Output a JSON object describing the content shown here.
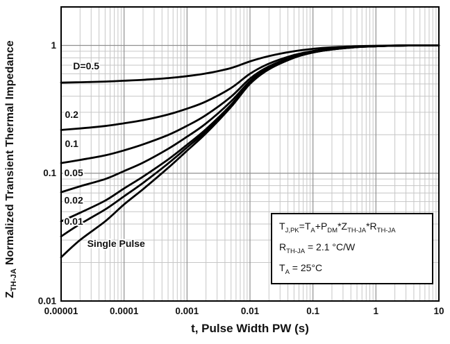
{
  "figure": {
    "x_axis_label": "t, Pulse Width PW (s)",
    "y_axis_label_parts": [
      {
        "t": "Z",
        "sub": false
      },
      {
        "t": "TH-JA",
        "sub": true
      },
      {
        "t": " Normalized Transient Thermal Impedance",
        "sub": false
      }
    ]
  },
  "annotation": {
    "lines": [
      [
        {
          "t": "T",
          "sub": false
        },
        {
          "t": "J,PK",
          "sub": true
        },
        {
          "t": "=T",
          "sub": false
        },
        {
          "t": "A",
          "sub": true
        },
        {
          "t": "+P",
          "sub": false
        },
        {
          "t": "DM",
          "sub": true
        },
        {
          "t": "*Z",
          "sub": false
        },
        {
          "t": "TH-JA",
          "sub": true
        },
        {
          "t": "*R",
          "sub": false
        },
        {
          "t": "TH-JA",
          "sub": true
        }
      ],
      [
        {
          "t": "R",
          "sub": false
        },
        {
          "t": "TH-JA",
          "sub": true
        },
        {
          "t": " = 2.1 °C/W",
          "sub": false
        }
      ],
      [
        {
          "t": "T",
          "sub": false
        },
        {
          "t": "A",
          "sub": true
        },
        {
          "t": " = 25°C",
          "sub": false
        }
      ]
    ]
  },
  "chart_data": {
    "type": "line",
    "title": "",
    "xlabel": "t, Pulse Width PW (s)",
    "ylabel": "Z_TH-JA Normalized Transient Thermal Impedance",
    "x_scale": "log",
    "y_scale": "log",
    "xlim": [
      1e-05,
      10
    ],
    "ylim": [
      0.01,
      2
    ],
    "grid": true,
    "legend_position": "inline-curve-labels",
    "x_tick_values": [
      1e-05,
      0.0001,
      0.001,
      0.01,
      0.1,
      1,
      10
    ],
    "x_tick_labels": [
      "0.00001",
      "0.0001",
      "0.001",
      "0.01",
      "0.1",
      "1",
      "10"
    ],
    "y_tick_values": [
      0.01,
      0.1,
      1
    ],
    "y_tick_labels": [
      "0.01",
      "0.1",
      "1"
    ],
    "x": [
      1e-05,
      2e-05,
      5e-05,
      0.0001,
      0.0002,
      0.0005,
      0.001,
      0.002,
      0.005,
      0.01,
      0.02,
      0.05,
      0.1,
      0.2,
      0.5,
      1,
      2,
      5,
      10
    ],
    "series": [
      {
        "name": "D=0.5",
        "values": [
          0.511,
          0.515,
          0.521,
          0.529,
          0.538,
          0.555,
          0.575,
          0.603,
          0.665,
          0.75,
          0.825,
          0.9,
          0.94,
          0.965,
          0.985,
          0.993,
          0.998,
          1.0,
          1.0
        ]
      },
      {
        "name": "D=0.2",
        "values": [
          0.218,
          0.224,
          0.234,
          0.246,
          0.26,
          0.288,
          0.32,
          0.364,
          0.464,
          0.6,
          0.72,
          0.84,
          0.904,
          0.944,
          0.976,
          0.988,
          0.996,
          1.0,
          1.0
        ]
      },
      {
        "name": "D=0.1",
        "values": [
          0.12,
          0.127,
          0.138,
          0.151,
          0.168,
          0.199,
          0.235,
          0.285,
          0.397,
          0.55,
          0.685,
          0.82,
          0.892,
          0.937,
          0.973,
          0.987,
          0.996,
          1.0,
          1.0
        ]
      },
      {
        "name": "D=0.05",
        "values": [
          0.071,
          0.079,
          0.09,
          0.104,
          0.121,
          0.155,
          0.193,
          0.245,
          0.364,
          0.525,
          0.668,
          0.81,
          0.886,
          0.934,
          0.972,
          0.986,
          0.995,
          1.0,
          1.0
        ]
      },
      {
        "name": "D=0.02",
        "values": [
          0.042,
          0.049,
          0.061,
          0.076,
          0.094,
          0.128,
          0.167,
          0.221,
          0.343,
          0.51,
          0.657,
          0.804,
          0.882,
          0.931,
          0.971,
          0.985,
          0.995,
          1.0,
          1.0
        ]
      },
      {
        "name": "D=0.01",
        "values": [
          0.032,
          0.04,
          0.052,
          0.066,
          0.084,
          0.119,
          0.159,
          0.213,
          0.337,
          0.505,
          0.654,
          0.802,
          0.881,
          0.931,
          0.97,
          0.985,
          0.995,
          1.0,
          1.0
        ]
      },
      {
        "name": "Single Pulse",
        "values": [
          0.022,
          0.03,
          0.042,
          0.057,
          0.075,
          0.11,
          0.15,
          0.205,
          0.33,
          0.5,
          0.65,
          0.8,
          0.88,
          0.93,
          0.97,
          0.985,
          0.995,
          1.0,
          1.0
        ]
      }
    ],
    "curve_labels": [
      {
        "text": "D=0.5",
        "x": 1.55e-05,
        "y": 0.65
      },
      {
        "text": "0.2",
        "x": 1.15e-05,
        "y": 0.27
      },
      {
        "text": "0.1",
        "x": 1.15e-05,
        "y": 0.16
      },
      {
        "text": "0.05",
        "x": 1.12e-05,
        "y": 0.095
      },
      {
        "text": "0.02",
        "x": 1.12e-05,
        "y": 0.058
      },
      {
        "text": "0.01",
        "x": 1.12e-05,
        "y": 0.0395
      },
      {
        "text": "Single Pulse",
        "x": 2.6e-05,
        "y": 0.0265
      }
    ],
    "colors": {
      "curve": "#000000",
      "grid_minor": "#c6c6c6",
      "grid_major": "#8f8f8f",
      "border": "#000000",
      "background": "#ffffff"
    }
  }
}
